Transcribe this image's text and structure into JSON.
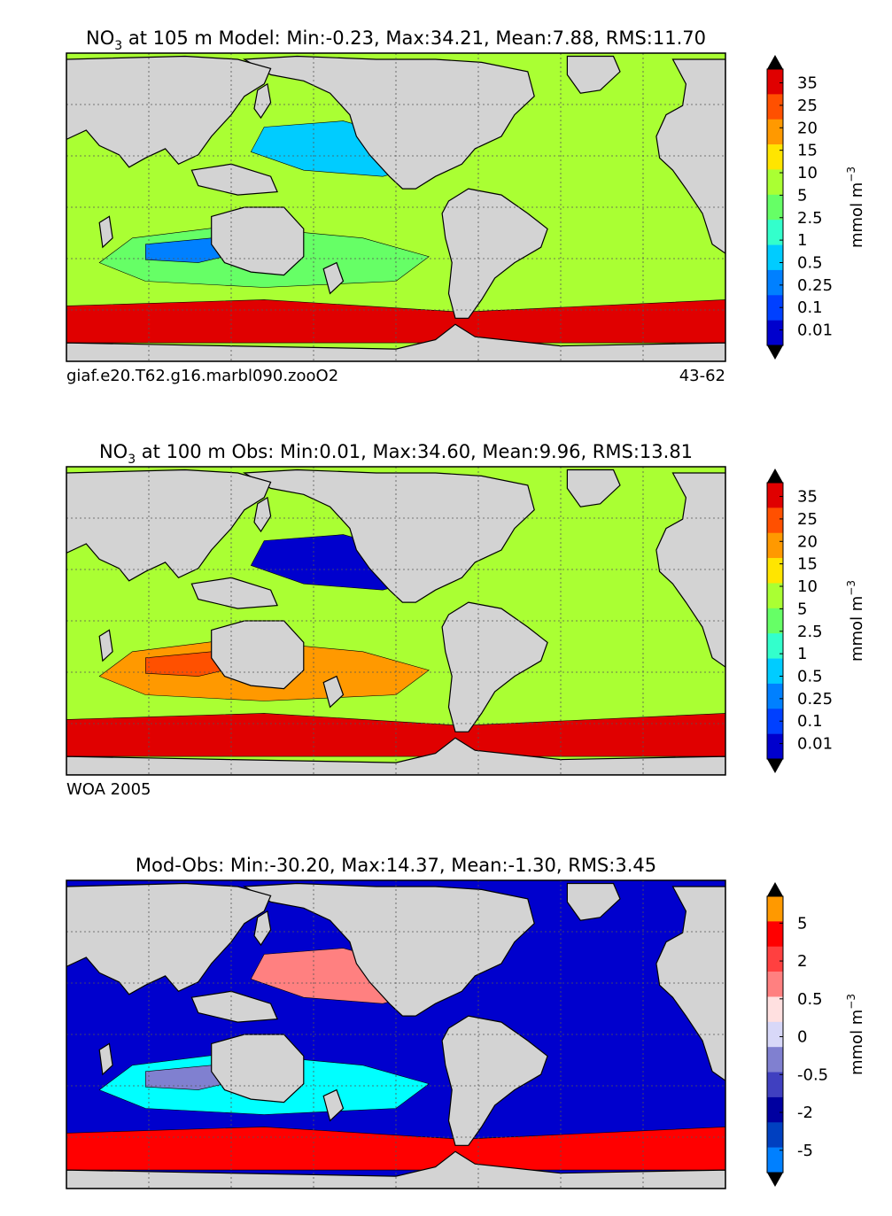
{
  "chart_data": [
    {
      "type": "heatmap",
      "title_var": "NO",
      "title_sub": "3",
      "title_rest": " at 105 m Model: Min:-0.23, Max:34.21, Mean:7.88, RMS:11.70",
      "stats": {
        "min": -0.23,
        "max": 34.21,
        "mean": 7.88,
        "rms": 11.7
      },
      "footer_left": "giaf.e20.T62.g16.marbl090.zooO2",
      "footer_right": "43-62",
      "colorbar": {
        "label": "mmol m",
        "label_sup": "−3",
        "tick_labels": [
          "35",
          "25",
          "20",
          "15",
          "10",
          "5",
          "2.5",
          "1",
          "0.5",
          "0.25",
          "0.1",
          "0.01"
        ],
        "colors": [
          "#00007f",
          "#0000cd",
          "#0040ff",
          "#0080ff",
          "#00ccff",
          "#33ffcc",
          "#66ff66",
          "#aaff33",
          "#ffe500",
          "#ff9900",
          "#ff5000",
          "#e00000",
          "#7f0000"
        ]
      },
      "ocean_fill": "#aaff33",
      "land_fill": "#d3d3d3",
      "coast_color": "#000000",
      "bands": [
        {
          "value": "5",
          "color": "#66ff66"
        },
        {
          "value": "1",
          "color": "#00ccff"
        },
        {
          "value": "0.25",
          "color": "#0080ff"
        },
        {
          "value": "25",
          "color": "#e00000"
        }
      ]
    },
    {
      "type": "heatmap",
      "title_var": "NO",
      "title_sub": "3",
      "title_rest": " at 100 m Obs: Min:0.01, Max:34.60, Mean:9.96, RMS:13.81",
      "stats": {
        "min": 0.01,
        "max": 34.6,
        "mean": 9.96,
        "rms": 13.81
      },
      "footer_left": "WOA 2005",
      "footer_right": "",
      "colorbar": {
        "label": "mmol m",
        "label_sup": "−3",
        "tick_labels": [
          "35",
          "25",
          "20",
          "15",
          "10",
          "5",
          "2.5",
          "1",
          "0.5",
          "0.25",
          "0.1",
          "0.01"
        ],
        "colors": [
          "#00007f",
          "#0000cd",
          "#0040ff",
          "#0080ff",
          "#00ccff",
          "#33ffcc",
          "#66ff66",
          "#aaff33",
          "#ffe500",
          "#ff9900",
          "#ff5000",
          "#e00000",
          "#7f0000"
        ]
      },
      "ocean_fill": "#aaff33",
      "land_fill": "#d3d3d3",
      "coast_color": "#000000",
      "bands": [
        {
          "value": "15",
          "color": "#ff9900"
        },
        {
          "value": "0.1",
          "color": "#0000cd"
        },
        {
          "value": "20",
          "color": "#ff5000"
        },
        {
          "value": "25",
          "color": "#e00000"
        }
      ]
    },
    {
      "type": "heatmap",
      "title_var": "",
      "title_sub": "",
      "title_rest": "Mod-Obs: Min:-30.20, Max:14.37, Mean:-1.30, RMS:3.45",
      "stats": {
        "min": -30.2,
        "max": 14.37,
        "mean": -1.3,
        "rms": 3.45
      },
      "footer_left": "",
      "footer_right": "",
      "colorbar": {
        "label": "mmol m",
        "label_sup": "−3",
        "tick_labels": [
          "5",
          "2",
          "0.5",
          "0",
          "-0.5",
          "-2",
          "-5"
        ],
        "colors": [
          "#00ffff",
          "#0080ff",
          "#0040c0",
          "#0000a0",
          "#4040c0",
          "#8080d0",
          "#d8d8f8",
          "#ffe0e0",
          "#ff8080",
          "#ff4040",
          "#ff0000",
          "#ff9900",
          "#ffff00"
        ]
      },
      "ocean_fill": "#0000cd",
      "land_fill": "#d3d3d3",
      "coast_color": "#000000",
      "bands": [
        {
          "value": "-5",
          "color": "#00ffff"
        },
        {
          "value": "0.5",
          "color": "#ff8080"
        },
        {
          "value": "-0.5",
          "color": "#8080d0"
        },
        {
          "value": "2",
          "color": "#ff0000"
        }
      ]
    }
  ]
}
